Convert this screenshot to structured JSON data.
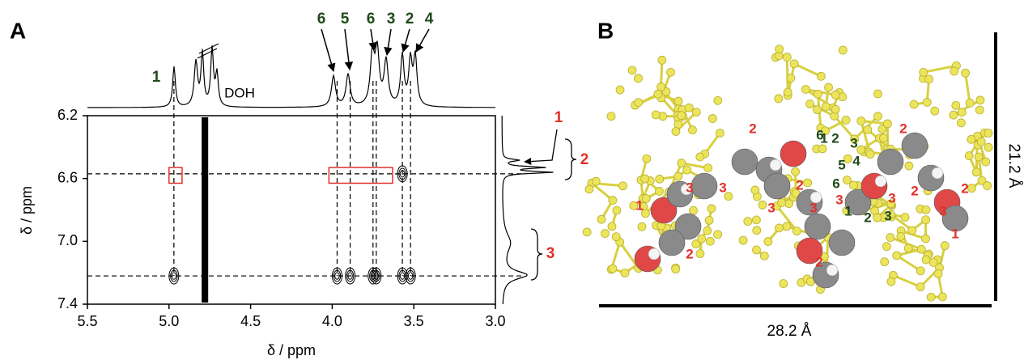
{
  "panel_a": {
    "label": "A",
    "type": "nmr-2d",
    "xlabel": "δ / ppm",
    "ylabel": "δ / ppm",
    "xlim": [
      5.5,
      3.0
    ],
    "xticks": [
      5.5,
      {
        "value": 5,
        "label": "5.0"
      },
      4.5,
      {
        "value": 4,
        "label": "4.0"
      },
      3.5,
      {
        "value": 3,
        "label": "3.0"
      }
    ],
    "ylim": [
      6.2,
      7.4
    ],
    "yticks": [
      6.2,
      6.6,
      {
        "value": 7,
        "label": "7.0"
      },
      7.4
    ],
    "top_peak_labels": [
      "6",
      "5",
      "6",
      "3",
      "2",
      "4"
    ],
    "h1_label": "1",
    "solvent_label": "DOH",
    "side_labels": [
      "1",
      "2",
      "3"
    ],
    "cross_peaks": {
      "x": [
        4.97,
        3.97,
        3.89,
        3.75,
        3.73,
        3.57,
        3.52,
        3.57
      ],
      "y": [
        7.22,
        7.22,
        7.22,
        7.22,
        7.22,
        7.22,
        7.22,
        6.57
      ]
    },
    "solvent_band": [
      4.8,
      4.76
    ],
    "boxes": [
      {
        "x": [
          5.0,
          4.92
        ],
        "y": [
          6.53,
          6.63
        ]
      },
      {
        "x": [
          4.02,
          3.63
        ],
        "y": [
          6.53,
          6.63
        ]
      }
    ],
    "guide_y": [
      6.57,
      7.22
    ],
    "box_color": "#e0302a"
  },
  "panel_b": {
    "label": "B",
    "green_labels": [
      "6",
      "1",
      "2",
      "3",
      "5",
      "4",
      "6",
      "1",
      "2",
      "3"
    ],
    "red_labels": [
      "2",
      "2",
      "3",
      "3",
      "2",
      "2",
      "1",
      "3",
      "3",
      "3",
      "3",
      "3",
      "2",
      "2",
      "2",
      "1"
    ],
    "width_label": "28.2 Å",
    "height_label": "21.2 Å"
  }
}
